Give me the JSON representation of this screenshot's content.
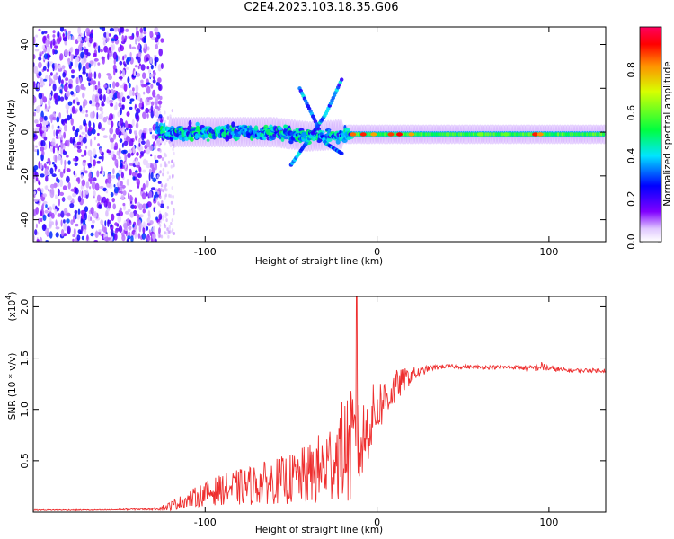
{
  "title": "C2E4.2023.103.18.35.G06",
  "chart_data": [
    {
      "type": "heatmap",
      "xlabel": "Height of straight line (km)",
      "ylabel": "Frequency (Hz)",
      "xlim": [
        -200,
        133
      ],
      "ylim": [
        -50,
        48
      ],
      "xticks": [
        -100,
        0,
        100
      ],
      "xtick_labels": [
        "-100",
        "0",
        "100"
      ],
      "yticks": [
        40,
        20,
        0,
        -20,
        -40
      ],
      "ytick_labels": [
        "40",
        "20",
        "0",
        "-20",
        "-40"
      ],
      "colorbar": {
        "label": "Normalized spectral amplitude",
        "range": [
          0,
          1
        ],
        "ticks": [
          0.0,
          0.2,
          0.4,
          0.6,
          0.8
        ],
        "tick_labels": [
          "0.0",
          "0.2",
          "0.4",
          "0.6",
          "0.8"
        ],
        "colormap": [
          "#ffffff",
          "#8000ff",
          "#0000ff",
          "#00ffff",
          "#00ff00",
          "#ffff00",
          "#ff8000",
          "#ff0000",
          "#ff0080"
        ]
      },
      "features": {
        "noise_region_x": [
          -200,
          -128
        ],
        "main_band": [
          {
            "x": -128,
            "y": 0
          },
          {
            "x": -60,
            "y": 0
          },
          {
            "x": -40,
            "y": -2
          },
          {
            "x": -20,
            "y": -1
          },
          {
            "x": 0,
            "y": -1
          },
          {
            "x": 50,
            "y": -1
          },
          {
            "x": 100,
            "y": -1
          },
          {
            "x": 133,
            "y": -1
          }
        ],
        "upgoing_streak": [
          {
            "x": -50,
            "y": -15
          },
          {
            "x": -30,
            "y": 8
          },
          {
            "x": -20,
            "y": 25
          }
        ],
        "downgoing_streak": [
          {
            "x": -45,
            "y": 20
          },
          {
            "x": -30,
            "y": -5
          },
          {
            "x": -20,
            "y": -10
          }
        ]
      },
      "grid": false
    },
    {
      "type": "line",
      "xlabel": "Height of straight line (km)",
      "ylabel": "SNR (10 * v/v)",
      "yscale_label": "(x10",
      "yscale_exp": "4",
      "yscale_close": ")",
      "xlim": [
        -200,
        133
      ],
      "ylim": [
        0,
        2.1
      ],
      "xticks": [
        -100,
        0,
        100
      ],
      "xtick_labels": [
        "-100",
        "0",
        "100"
      ],
      "yticks": [
        2.0,
        1.5,
        1.0,
        0.5
      ],
      "ytick_labels": [
        "2.0",
        "1.5",
        "1.0",
        "0.5"
      ],
      "color": "#ee2f2f",
      "series": [
        {
          "x": [
            -200,
            -160,
            -130,
            -122,
            -110,
            -100,
            -90,
            -80,
            -70,
            -60,
            -50,
            -40,
            -32,
            -26,
            -22,
            -18,
            -14,
            -12,
            -10,
            -6,
            -2,
            2,
            6,
            10,
            15,
            20,
            25,
            30,
            40,
            60,
            80,
            90,
            95,
            100,
            110,
            120,
            133
          ],
          "y": [
            0.02,
            0.02,
            0.03,
            0.05,
            0.12,
            0.18,
            0.22,
            0.24,
            0.27,
            0.3,
            0.32,
            0.36,
            0.42,
            0.5,
            0.58,
            0.62,
            0.6,
            0.7,
            0.62,
            0.8,
            0.95,
            1.05,
            1.12,
            1.2,
            1.28,
            1.33,
            1.36,
            1.4,
            1.42,
            1.41,
            1.41,
            1.4,
            1.42,
            1.4,
            1.38,
            1.38,
            1.38
          ],
          "noise_amp": [
            0.005,
            0.005,
            0.01,
            0.04,
            0.08,
            0.12,
            0.15,
            0.18,
            0.2,
            0.22,
            0.25,
            0.3,
            0.38,
            0.42,
            0.45,
            0.55,
            0.6,
            0.35,
            0.45,
            0.35,
            0.3,
            0.25,
            0.2,
            0.18,
            0.12,
            0.08,
            0.05,
            0.03,
            0.02,
            0.02,
            0.02,
            0.03,
            0.05,
            0.03,
            0.02,
            0.02,
            0.02
          ]
        }
      ],
      "peak": {
        "x": -12,
        "y": 2.1
      },
      "grid": false
    }
  ]
}
